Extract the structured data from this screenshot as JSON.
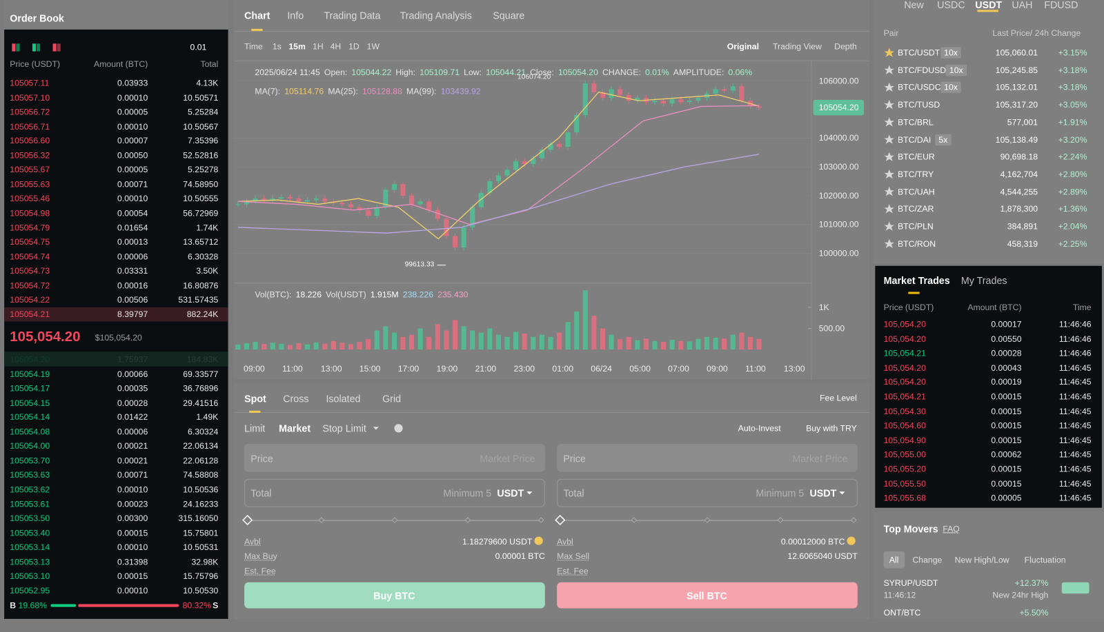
{
  "order_book": {
    "title": "Order Book",
    "step": "0.01",
    "headers": [
      "Price (USDT)",
      "Amount (BTC)",
      "Total"
    ],
    "asks": [
      [
        "105057.11",
        "0.03933",
        "4.13K"
      ],
      [
        "105057.10",
        "0.00010",
        "10.50571"
      ],
      [
        "105056.72",
        "0.00005",
        "5.25284"
      ],
      [
        "105056.71",
        "0.00010",
        "10.50567"
      ],
      [
        "105056.60",
        "0.00007",
        "7.35396"
      ],
      [
        "105056.32",
        "0.00050",
        "52.52816"
      ],
      [
        "105055.67",
        "0.00005",
        "5.25278"
      ],
      [
        "105055.63",
        "0.00071",
        "74.58950"
      ],
      [
        "105055.46",
        "0.00010",
        "10.50555"
      ],
      [
        "105054.98",
        "0.00054",
        "56.72969"
      ],
      [
        "105054.79",
        "0.01654",
        "1.74K"
      ],
      [
        "105054.75",
        "0.00013",
        "13.65712"
      ],
      [
        "105054.74",
        "0.00006",
        "6.30328"
      ],
      [
        "105054.73",
        "0.03331",
        "3.50K"
      ],
      [
        "105054.72",
        "0.00016",
        "16.80876"
      ],
      [
        "105054.22",
        "0.00506",
        "531.57435"
      ],
      [
        "105054.21",
        "8.39797",
        "882.24K"
      ]
    ],
    "mid": {
      "price": "105,054.20",
      "usd": "$105,054.20"
    },
    "bids": [
      [
        "105054.20",
        "1.75937",
        "184.83K"
      ],
      [
        "105054.19",
        "0.00066",
        "69.33577"
      ],
      [
        "105054.17",
        "0.00035",
        "36.76896"
      ],
      [
        "105054.15",
        "0.00028",
        "29.41516"
      ],
      [
        "105054.14",
        "0.01422",
        "1.49K"
      ],
      [
        "105054.08",
        "0.00006",
        "6.30324"
      ],
      [
        "105054.00",
        "0.00021",
        "22.06134"
      ],
      [
        "105053.70",
        "0.00021",
        "22.06128"
      ],
      [
        "105053.63",
        "0.00071",
        "74.58808"
      ],
      [
        "105053.62",
        "0.00010",
        "10.50536"
      ],
      [
        "105053.61",
        "0.00023",
        "24.16233"
      ],
      [
        "105053.50",
        "0.00300",
        "315.16050"
      ],
      [
        "105053.40",
        "0.00015",
        "15.75801"
      ],
      [
        "105053.14",
        "0.00010",
        "10.50531"
      ],
      [
        "105053.13",
        "0.31398",
        "32.98K"
      ],
      [
        "105053.10",
        "0.00015",
        "15.75796"
      ],
      [
        "105052.95",
        "0.00010",
        "10.50530"
      ]
    ],
    "ratio": {
      "b": "B",
      "b_pct": "19.68%",
      "s_pct": "80.32%",
      "s": "S"
    }
  },
  "chart": {
    "tabs": [
      "Chart",
      "Info",
      "Trading Data",
      "Trading Analysis",
      "Square"
    ],
    "intervals": [
      "Time",
      "1s",
      "15m",
      "1H",
      "4H",
      "1D",
      "1W"
    ],
    "views": [
      "Original",
      "Trading View",
      "Depth"
    ],
    "ohlc": [
      "2025/06/24 11:45",
      "Open:",
      "105044.22",
      "High:",
      "105109.71",
      "Low:",
      "105044.21",
      "Close:",
      "105054.20",
      "CHANGE:",
      "0.01%",
      "AMPLITUDE:",
      "0.06%"
    ],
    "ylim": [
      99000,
      106600
    ],
    "yticks": [
      {
        "value": 106000,
        "label": "106000.00"
      },
      {
        "value": 104000,
        "label": "104000.00"
      },
      {
        "value": 103000,
        "label": "103000.00"
      },
      {
        "value": 102000,
        "label": "102000.00"
      },
      {
        "value": 101000,
        "label": "101000.00"
      },
      {
        "value": 100000,
        "label": "100000.00"
      }
    ],
    "last": "105054.20",
    "high_label": "106074.20",
    "low_label": "99613.33",
    "up_color": "#55b892",
    "down_color": "#d8707f",
    "closes": [
      101700,
      101800,
      101900,
      101850,
      101900,
      101950,
      101900,
      101800,
      101850,
      101900,
      101800,
      101750,
      101700,
      101600,
      101500,
      101300,
      101600,
      102200,
      102400,
      102000,
      101700,
      101800,
      101500,
      101200,
      100600,
      100200,
      100900,
      101600,
      102100,
      102500,
      102700,
      102900,
      103200,
      103100,
      103300,
      103600,
      103800,
      103700,
      104200,
      104800,
      105900,
      105600,
      105400,
      105700,
      105500,
      105300,
      105400,
      105250,
      105300,
      105200,
      105350,
      105250,
      105300,
      105400,
      105550,
      105700,
      105650,
      105800,
      105300,
      105100,
      105054.2
    ],
    "mas": [
      {
        "name": "MA(7):",
        "last": "105114.76",
        "color": "#f2cf6b",
        "values": [
          101800,
          101850,
          101700,
          101900,
          101600,
          100500,
          101800,
          102900,
          104000,
          105600,
          105300,
          105400,
          105500,
          105115
        ]
      },
      {
        "name": "MA(25):",
        "last": "105128.88",
        "color": "#ea8fc0",
        "values": [
          101800,
          101700,
          101500,
          101700,
          101000,
          101500,
          103000,
          104600,
          105100,
          105129
        ]
      },
      {
        "name": "MA(99):",
        "last": "103439.92",
        "color": "#b9a6e6",
        "values": [
          100900,
          100800,
          100700,
          100900,
          101600,
          102400,
          103000,
          103440
        ]
      }
    ],
    "vol_info": [
      "Vol(BTC):",
      "18.226",
      "Vol(USDT)",
      "1.915M",
      "238.226",
      "235.430"
    ],
    "vol_ylim": [
      0,
      1450
    ],
    "vol_yticks": [
      {
        "value": 1000,
        "label": "1K"
      },
      {
        "value": 500,
        "label": "500.00"
      }
    ],
    "volumes": [
      120,
      150,
      180,
      130,
      160,
      140,
      110,
      150,
      120,
      170,
      140,
      200,
      160,
      130,
      180,
      250,
      450,
      550,
      400,
      300,
      350,
      500,
      300,
      600,
      450,
      700,
      550,
      450,
      400,
      500,
      350,
      300,
      420,
      380,
      300,
      350,
      300,
      400,
      650,
      900,
      1400,
      800,
      500,
      350,
      250,
      300,
      220,
      260,
      200,
      180,
      230,
      200,
      190,
      250,
      300,
      280,
      260,
      350,
      400,
      300,
      250
    ],
    "xticks": [
      "09:00",
      "11:00",
      "13:00",
      "15:00",
      "17:00",
      "19:00",
      "21:00",
      "23:00",
      "01:00",
      "06/24",
      "05:00",
      "07:00",
      "09:00",
      "11:00",
      "13:00"
    ]
  },
  "form": {
    "tabs": [
      "Spot",
      "Cross",
      "Isolated",
      "Grid"
    ],
    "fee": "Fee Level",
    "types": [
      "Limit",
      "Market",
      "Stop Limit"
    ],
    "links": [
      "Auto-Invest",
      "Buy with TRY"
    ],
    "sides": [
      {
        "price": "Price",
        "price_hint": "Market Price",
        "total": "Total",
        "min": "Minimum 5",
        "unit": "USDT",
        "rows": [
          {
            "label": "Avbl",
            "value": "1.18279600 USDT"
          },
          {
            "label": "Max Buy",
            "value": "0.00001 BTC"
          },
          {
            "label": "Est. Fee"
          }
        ],
        "button": "Buy BTC",
        "color": "#9fdcc0"
      },
      {
        "price": "Price",
        "price_hint": "Market Price",
        "total": "Total",
        "min": "Minimum 5",
        "unit": "USDT",
        "rows": [
          {
            "label": "Avbl",
            "value": "0.00012000 BTC"
          },
          {
            "label": "Max Sell",
            "value": "12.6065040 USDT"
          },
          {
            "label": "Est. Fee"
          }
        ],
        "button": "Sell BTC",
        "color": "#f5a3ac"
      }
    ]
  },
  "pairs": {
    "quotes": [
      "New",
      "USDC",
      "USDT",
      "UAH",
      "FDUSD"
    ],
    "headers": [
      "Pair",
      "Last Price/ 24h Change"
    ],
    "rows": [
      {
        "pair": "BTC/USDT",
        "lev": "10x",
        "price": "105,060.01",
        "change": "+3.15%"
      },
      {
        "pair": "BTC/FDUSD",
        "lev": "10x",
        "price": "105,245.85",
        "change": "+3.18%"
      },
      {
        "pair": "BTC/USDC",
        "lev": "10x",
        "price": "105,132.01",
        "change": "+3.18%"
      },
      {
        "pair": "BTC/TUSD",
        "price": "105,317.20",
        "change": "+3.05%"
      },
      {
        "pair": "BTC/BRL",
        "price": "577,001",
        "change": "+1.91%"
      },
      {
        "pair": "BTC/DAI",
        "lev": "5x",
        "price": "105,138.49",
        "change": "+3.20%"
      },
      {
        "pair": "BTC/EUR",
        "price": "90,698.18",
        "change": "+2.24%"
      },
      {
        "pair": "BTC/TRY",
        "price": "4,162,704",
        "change": "+2.80%"
      },
      {
        "pair": "BTC/UAH",
        "price": "4,544,255",
        "change": "+2.89%"
      },
      {
        "pair": "BTC/ZAR",
        "price": "1,878,300",
        "change": "+1.36%"
      },
      {
        "pair": "BTC/PLN",
        "price": "384,891",
        "change": "+2.04%"
      },
      {
        "pair": "BTC/RON",
        "price": "458,319",
        "change": "+2.25%"
      }
    ]
  },
  "trades": {
    "tabs": [
      "Market Trades",
      "My Trades"
    ],
    "headers": [
      "Price (USDT)",
      "Amount (BTC)",
      "Time"
    ],
    "rows": [
      {
        "price": "105,054.20",
        "amount": "0.00017",
        "time": "11:46:46",
        "color": "#f6465d"
      },
      {
        "price": "105,054.20",
        "amount": "0.00550",
        "time": "11:46:46",
        "color": "#f6465d"
      },
      {
        "price": "105,054.21",
        "amount": "0.00028",
        "time": "11:46:46",
        "color": "#0ecb81"
      },
      {
        "price": "105,054.20",
        "amount": "0.00043",
        "time": "11:46:45",
        "color": "#f6465d"
      },
      {
        "price": "105,054.20",
        "amount": "0.00019",
        "time": "11:46:45",
        "color": "#f6465d"
      },
      {
        "price": "105,054.21",
        "amount": "0.00015",
        "time": "11:46:45",
        "color": "#f6465d"
      },
      {
        "price": "105,054.30",
        "amount": "0.00015",
        "time": "11:46:45",
        "color": "#f6465d"
      },
      {
        "price": "105,054.60",
        "amount": "0.00015",
        "time": "11:46:45",
        "color": "#f6465d"
      },
      {
        "price": "105,054.90",
        "amount": "0.00015",
        "time": "11:46:45",
        "color": "#f6465d"
      },
      {
        "price": "105,055.00",
        "amount": "0.00062",
        "time": "11:46:45",
        "color": "#f6465d"
      },
      {
        "price": "105,055.20",
        "amount": "0.00015",
        "time": "11:46:45",
        "color": "#f6465d"
      },
      {
        "price": "105,055.50",
        "amount": "0.00015",
        "time": "11:46:45",
        "color": "#f6465d"
      },
      {
        "price": "105,055.68",
        "amount": "0.00005",
        "time": "11:46:45",
        "color": "#f6465d"
      }
    ]
  },
  "movers": {
    "title": "Top Movers",
    "faq": "FAQ",
    "tabs": [
      "All",
      "Change",
      "New High/Low",
      "Fluctuation"
    ],
    "rows": [
      {
        "pair": "SYRUP/USDT",
        "time": "11:46:12",
        "change": "+12.37%",
        "note": "New 24hr High"
      },
      {
        "pair": "ONT/BTC",
        "change": "+5.50%"
      }
    ]
  }
}
